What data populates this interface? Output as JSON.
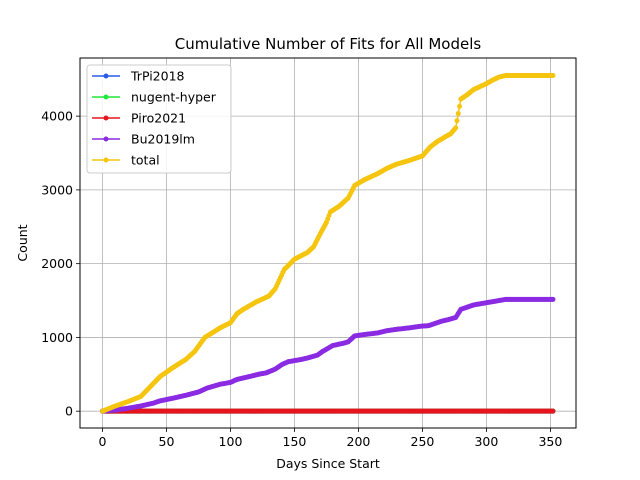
{
  "chart_data": {
    "type": "line",
    "title": "Cumulative Number of Fits for All Models",
    "xlabel": "Days Since Start",
    "ylabel": "Count",
    "xlim": [
      -17.6,
      370
    ],
    "ylim": [
      -228,
      4788
    ],
    "xticks": [
      0,
      50,
      100,
      150,
      200,
      250,
      300,
      350
    ],
    "yticks": [
      0,
      1000,
      2000,
      3000,
      4000
    ],
    "grid": true,
    "legend_position": "top-left",
    "series": [
      {
        "name": "TrPi2018",
        "color": "#2a5be6",
        "x": [
          0,
          352
        ],
        "y": [
          0,
          0
        ]
      },
      {
        "name": "nugent-hyper",
        "color": "#22e63a",
        "x": [
          0,
          352
        ],
        "y": [
          0,
          0
        ]
      },
      {
        "name": "Piro2021",
        "color": "#e6151e",
        "x": [
          0,
          352
        ],
        "y": [
          0,
          0
        ]
      },
      {
        "name": "Bu2019lm",
        "color": "#8a2be2",
        "x": [
          0,
          10,
          20,
          30,
          40,
          45,
          55,
          65,
          75,
          82,
          92,
          100,
          105,
          115,
          122,
          128,
          135,
          140,
          145,
          155,
          160,
          168,
          172,
          180,
          188,
          192,
          197,
          205,
          215,
          222,
          230,
          240,
          248,
          255,
          265,
          270,
          276,
          280,
          290,
          300,
          310,
          315,
          352
        ],
        "y": [
          0,
          15,
          40,
          70,
          110,
          140,
          175,
          215,
          260,
          315,
          365,
          390,
          430,
          470,
          500,
          520,
          570,
          630,
          670,
          700,
          720,
          760,
          810,
          890,
          920,
          940,
          1020,
          1040,
          1060,
          1090,
          1110,
          1130,
          1150,
          1160,
          1220,
          1240,
          1270,
          1380,
          1440,
          1470,
          1500,
          1515,
          1515
        ]
      },
      {
        "name": "total",
        "color": "#f5c50f",
        "x": [
          0,
          10,
          20,
          30,
          35,
          45,
          55,
          65,
          72,
          80,
          92,
          100,
          105,
          110,
          120,
          130,
          135,
          142,
          150,
          160,
          165,
          170,
          175,
          178,
          185,
          192,
          197,
          205,
          215,
          222,
          230,
          240,
          250,
          256,
          262,
          268,
          272,
          276,
          280,
          285,
          290,
          300,
          305,
          310,
          315,
          352
        ],
        "y": [
          0,
          70,
          130,
          200,
          290,
          470,
          590,
          700,
          810,
          1000,
          1130,
          1200,
          1320,
          1380,
          1480,
          1560,
          1660,
          1920,
          2060,
          2150,
          2230,
          2400,
          2560,
          2700,
          2780,
          2890,
          3060,
          3140,
          3220,
          3290,
          3350,
          3400,
          3460,
          3580,
          3660,
          3720,
          3760,
          3840,
          4230,
          4290,
          4360,
          4440,
          4490,
          4530,
          4550,
          4550
        ]
      }
    ]
  }
}
